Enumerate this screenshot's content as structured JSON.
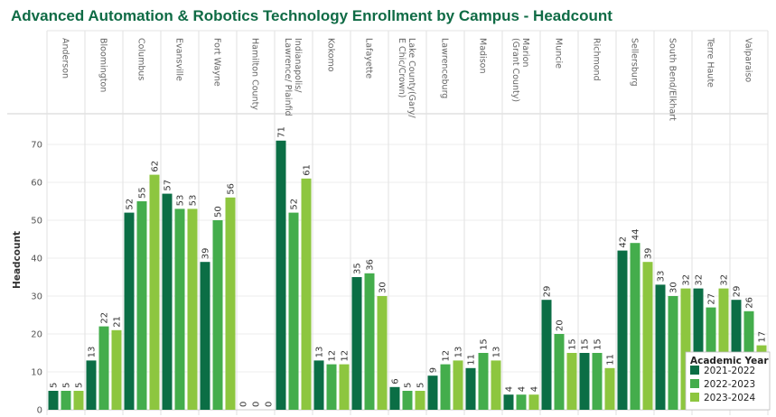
{
  "chart_data": {
    "type": "bar",
    "title": "Advanced Automation & Robotics Technology Enrollment by Campus - Headcount",
    "ylabel": "Headcount",
    "xlabel": "",
    "ylim": [
      0,
      75
    ],
    "yticks": [
      0,
      10,
      20,
      30,
      40,
      50,
      60,
      70
    ],
    "grid": "horizontal",
    "legend_title": "Academic Year",
    "legend_position": "bottom-right",
    "categories": [
      "Anderson",
      "Bloomington",
      "Columbus",
      "Evansville",
      "Fort Wayne",
      "Hamilton County",
      "Indianapolis/ Lawrence/ Plainfid",
      "Kokomo",
      "Lafayette",
      "Lake County(Gary/ E Chic/Crown)",
      "Lawrenceburg",
      "Madison",
      "Marion (Grant County)",
      "Muncie",
      "Richmond",
      "Sellersburg",
      "South Bend/Elkhart",
      "Terre Haute",
      "Valparaiso"
    ],
    "series": [
      {
        "name": "2021-2022",
        "color": "#0b6e45",
        "values": [
          5,
          13,
          52,
          57,
          39,
          0,
          71,
          13,
          35,
          6,
          9,
          11,
          4,
          29,
          15,
          42,
          33,
          32,
          29
        ]
      },
      {
        "name": "2022-2023",
        "color": "#44ad4c",
        "values": [
          5,
          22,
          55,
          53,
          50,
          0,
          52,
          12,
          36,
          5,
          12,
          15,
          4,
          20,
          15,
          44,
          30,
          27,
          26
        ]
      },
      {
        "name": "2023-2024",
        "color": "#8dc63f",
        "values": [
          5,
          21,
          62,
          53,
          56,
          0,
          61,
          12,
          30,
          5,
          13,
          13,
          4,
          15,
          11,
          39,
          32,
          32,
          17
        ]
      }
    ]
  }
}
